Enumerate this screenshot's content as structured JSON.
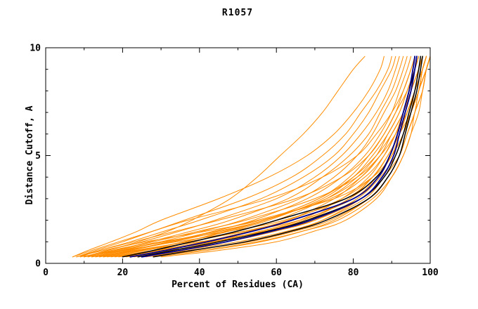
{
  "chart_data": {
    "type": "line",
    "title": "R1057",
    "xlabel": "Percent of Residues (CA)",
    "ylabel": "Distance Cutoff, A",
    "xlim": [
      0,
      100
    ],
    "ylim": [
      0,
      10
    ],
    "xticks": [
      0,
      20,
      40,
      60,
      80,
      100
    ],
    "xtick_labels": [
      "0",
      "20",
      "40",
      "60",
      "80",
      "100"
    ],
    "x_minor": [
      10,
      30,
      50,
      70,
      90
    ],
    "yticks": [
      0,
      5,
      10
    ],
    "ytick_labels": [
      "0",
      "5",
      "10"
    ],
    "y_minor": [
      1,
      2,
      3,
      4,
      6,
      7,
      8,
      9
    ],
    "grid": false,
    "legend": null,
    "colors": {
      "orange": "#ff8c00",
      "black": "#000000",
      "blue": "#00008b",
      "axis": "#000000"
    },
    "y_samples": [
      0.3,
      0.6,
      1.0,
      1.5,
      2.0,
      3.0,
      4.0,
      5.0,
      6.0,
      7.0,
      8.0,
      9.0,
      9.6
    ],
    "series": [
      {
        "group": "orange-models",
        "color": "#ff8c00",
        "width": 1,
        "curves": [
          [
            10,
            16,
            24,
            32,
            38,
            48,
            55,
            61,
            67,
            72,
            76,
            80,
            83
          ],
          [
            7,
            11,
            17,
            24,
            30,
            45,
            58,
            68,
            75,
            80,
            84,
            87,
            88
          ],
          [
            8,
            13,
            20,
            28,
            36,
            52,
            64,
            72,
            78,
            82,
            86,
            89,
            90
          ],
          [
            9,
            14,
            22,
            31,
            40,
            56,
            67,
            75,
            80,
            84,
            87,
            90,
            91
          ],
          [
            10,
            16,
            25,
            35,
            44,
            60,
            70,
            77,
            82,
            86,
            89,
            91,
            92
          ],
          [
            11,
            18,
            27,
            38,
            48,
            63,
            72,
            79,
            84,
            87,
            90,
            92,
            93
          ],
          [
            12,
            20,
            30,
            41,
            51,
            66,
            75,
            81,
            85,
            88,
            91,
            93,
            94
          ],
          [
            13,
            22,
            33,
            44,
            54,
            68,
            77,
            83,
            87,
            90,
            92,
            94,
            95
          ],
          [
            14,
            24,
            36,
            47,
            57,
            71,
            79,
            84,
            88,
            91,
            93,
            95,
            96
          ],
          [
            15,
            26,
            38,
            50,
            60,
            73,
            81,
            86,
            89,
            92,
            94,
            96,
            97
          ],
          [
            16,
            28,
            41,
            53,
            63,
            75,
            82,
            87,
            90,
            93,
            95,
            97,
            98
          ],
          [
            18,
            30,
            44,
            56,
            66,
            77,
            84,
            88,
            91,
            94,
            96,
            98,
            99
          ],
          [
            20,
            33,
            47,
            59,
            68,
            79,
            85,
            89,
            92,
            95,
            97,
            99,
            100
          ],
          [
            9,
            18,
            30,
            48,
            62,
            78,
            85,
            89,
            92,
            94,
            96,
            97,
            98
          ],
          [
            10,
            20,
            34,
            52,
            66,
            80,
            86,
            90,
            92,
            94,
            96,
            98,
            99
          ],
          [
            12,
            24,
            40,
            58,
            70,
            82,
            88,
            91,
            93,
            95,
            97,
            98,
            99
          ],
          [
            8,
            15,
            26,
            42,
            56,
            74,
            83,
            88,
            91,
            93,
            95,
            97,
            98
          ],
          [
            25,
            38,
            52,
            64,
            72,
            82,
            88,
            91,
            93,
            95,
            97,
            98,
            99
          ],
          [
            28,
            42,
            56,
            67,
            75,
            84,
            89,
            92,
            94,
            96,
            97,
            99,
            100
          ],
          [
            30,
            45,
            60,
            70,
            78,
            86,
            90,
            93,
            95,
            96,
            98,
            99,
            100
          ],
          [
            7,
            12,
            19,
            28,
            37,
            58,
            72,
            81,
            86,
            90,
            93,
            95,
            96
          ],
          [
            8,
            14,
            23,
            34,
            45,
            65,
            77,
            84,
            88,
            91,
            94,
            96,
            97
          ],
          [
            11,
            19,
            31,
            45,
            57,
            73,
            82,
            87,
            90,
            93,
            95,
            97,
            98
          ],
          [
            13,
            23,
            37,
            52,
            63,
            77,
            85,
            89,
            92,
            94,
            96,
            97,
            98
          ],
          [
            17,
            29,
            43,
            57,
            67,
            79,
            86,
            90,
            93,
            95,
            96,
            98,
            99
          ],
          [
            19,
            32,
            47,
            60,
            70,
            81,
            87,
            91,
            93,
            95,
            97,
            98,
            99
          ],
          [
            21,
            35,
            50,
            63,
            72,
            83,
            88,
            92,
            94,
            96,
            97,
            99,
            100
          ],
          [
            23,
            37,
            53,
            65,
            74,
            84,
            89,
            92,
            94,
            96,
            98,
            99,
            100
          ],
          [
            26,
            40,
            55,
            67,
            76,
            85,
            90,
            93,
            95,
            97,
            98,
            99,
            100
          ],
          [
            15,
            25,
            36,
            48,
            58,
            72,
            80,
            85,
            89,
            92,
            94,
            96,
            97
          ],
          [
            12,
            21,
            33,
            46,
            57,
            71,
            80,
            86,
            90,
            93,
            95,
            97,
            98
          ],
          [
            14,
            22,
            32,
            44,
            55,
            75,
            85,
            90,
            93,
            95,
            97,
            98,
            99
          ],
          [
            10,
            17,
            28,
            40,
            52,
            70,
            81,
            87,
            91,
            94,
            96,
            98,
            99
          ]
        ]
      },
      {
        "group": "black-models",
        "color": "#000000",
        "width": 1.5,
        "curves": [
          [
            20,
            28,
            38,
            50,
            60,
            78,
            86,
            89.5,
            91.5,
            93,
            94.5,
            96,
            96.5
          ],
          [
            24,
            33,
            45,
            58,
            68,
            82,
            88,
            91,
            93,
            94.5,
            96,
            97,
            97.5
          ],
          [
            28,
            38,
            52,
            64,
            73,
            84,
            89,
            92,
            93.5,
            95,
            96.5,
            97.5,
            98
          ]
        ]
      },
      {
        "group": "blue-models",
        "color": "#00008b",
        "width": 1.8,
        "curves": [
          [
            22,
            31,
            42,
            54,
            64,
            80,
            86.5,
            89.5,
            91.5,
            93,
            94.5,
            95.5,
            96
          ],
          [
            25,
            35,
            47,
            59,
            69,
            82,
            87.5,
            90.5,
            92,
            93.5,
            95,
            96,
            96.5
          ]
        ]
      }
    ]
  }
}
